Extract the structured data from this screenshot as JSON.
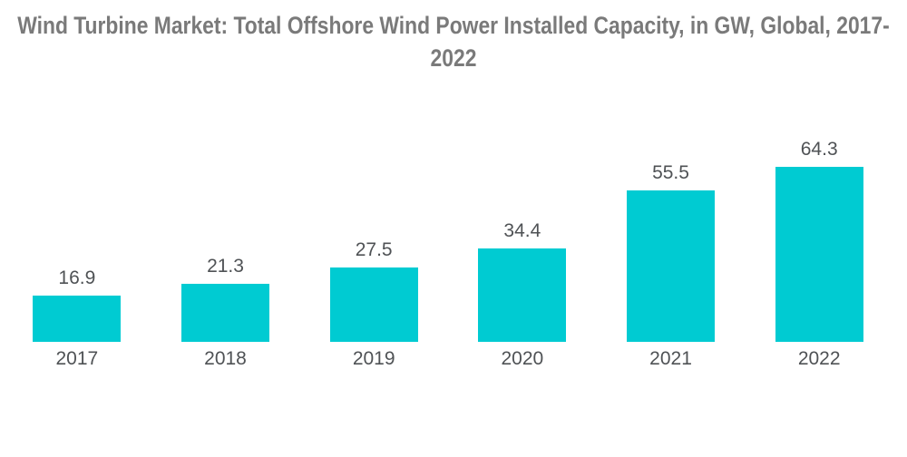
{
  "page": {
    "background": "#FFFFFF"
  },
  "title": {
    "text": "Wind Turbine Market: Total Offshore Wind Power Installed Capacity, in GW, Global, 2017-2022",
    "color": "#7A7A7A"
  },
  "chart_data": {
    "type": "bar",
    "title": "Wind Turbine Market: Total Offshore Wind Power Installed Capacity, in GW, Global, 2017-2022",
    "unit": "GW",
    "categories": [
      "2017",
      "2018",
      "2019",
      "2020",
      "2021",
      "2022"
    ],
    "values": [
      16.9,
      21.3,
      27.5,
      34.4,
      55.5,
      64.3
    ],
    "value_labels": [
      "16.9",
      "21.3",
      "27.5",
      "34.4",
      "55.5",
      "64.3"
    ],
    "xlabel": "",
    "ylabel": "",
    "axes_visible": false,
    "gridlines": false,
    "legend": null,
    "data_labels_position": "above-bars",
    "bar_color": "#00CBD2",
    "label_color": "#4F5255",
    "background_color": "#FFFFFF"
  }
}
